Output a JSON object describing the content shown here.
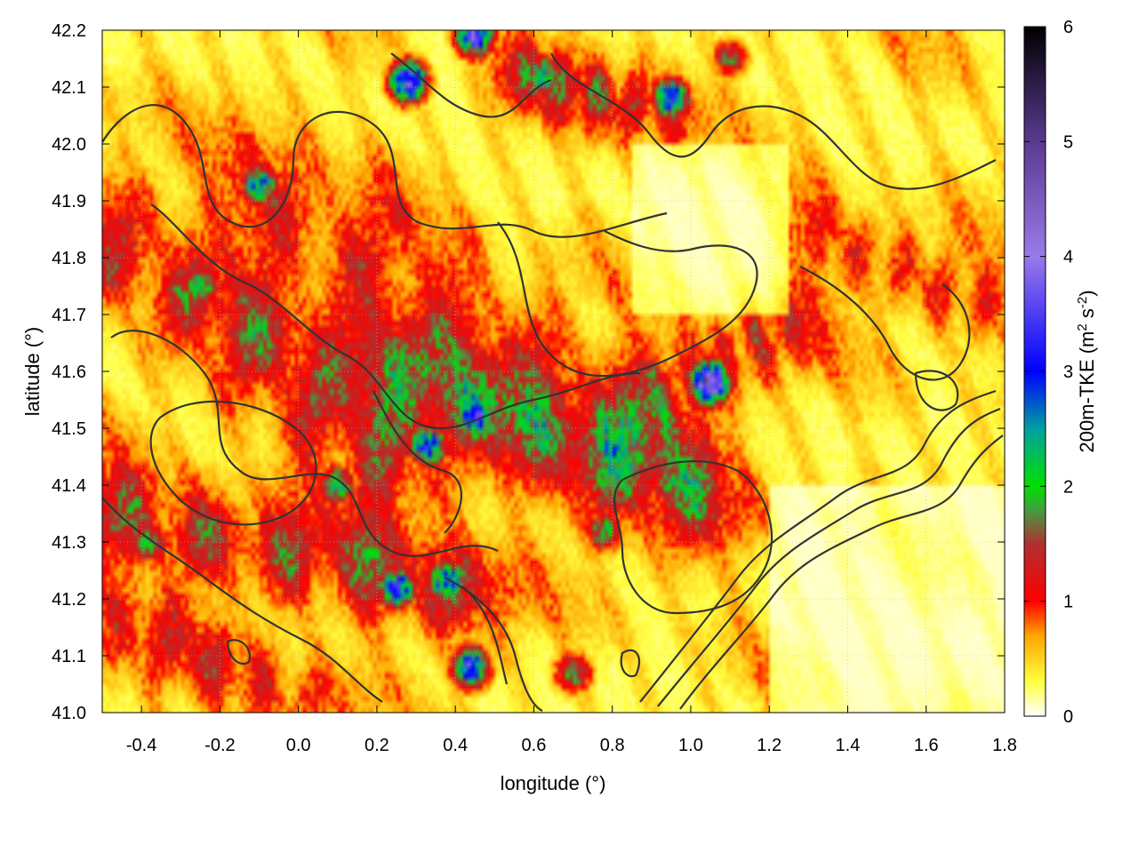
{
  "chart_data": {
    "type": "heatmap",
    "xlabel": "longitude (°)",
    "ylabel": "latitude (°)",
    "xlim": [
      -0.5,
      1.8
    ],
    "ylim": [
      41.0,
      42.2
    ],
    "x_ticks": [
      "-0.4",
      "-0.2",
      "0.0",
      "0.2",
      "0.4",
      "0.6",
      "0.8",
      "1.0",
      "1.2",
      "1.4",
      "1.6",
      "1.8"
    ],
    "x_tick_values": [
      -0.4,
      -0.2,
      0.0,
      0.2,
      0.4,
      0.6,
      0.8,
      1.0,
      1.2,
      1.4,
      1.6,
      1.8
    ],
    "y_ticks": [
      "41.0",
      "41.1",
      "41.2",
      "41.3",
      "41.4",
      "41.5",
      "41.6",
      "41.7",
      "41.8",
      "41.9",
      "42.0",
      "42.1",
      "42.2"
    ],
    "y_tick_values": [
      41.0,
      41.1,
      41.2,
      41.3,
      41.4,
      41.5,
      41.6,
      41.7,
      41.8,
      41.9,
      42.0,
      42.1,
      42.2
    ],
    "colorbar": {
      "label_main": "200m-TKE (m",
      "label_sup1": "2",
      "label_mid": " s",
      "label_sup2": "-2",
      "label_end": ")",
      "range": [
        0,
        6
      ],
      "ticks": [
        "0",
        "1",
        "2",
        "3",
        "4",
        "5",
        "6"
      ],
      "tick_values": [
        0,
        1,
        2,
        3,
        4,
        5,
        6
      ],
      "stops": [
        {
          "value": 0.0,
          "color": "#ffffff"
        },
        {
          "value": 0.3,
          "color": "#ffff40"
        },
        {
          "value": 0.7,
          "color": "#ffa500"
        },
        {
          "value": 1.0,
          "color": "#ff0000"
        },
        {
          "value": 1.5,
          "color": "#b03030"
        },
        {
          "value": 1.8,
          "color": "#40a040"
        },
        {
          "value": 2.0,
          "color": "#00e000"
        },
        {
          "value": 2.5,
          "color": "#00a0a0"
        },
        {
          "value": 3.0,
          "color": "#0000ff"
        },
        {
          "value": 4.0,
          "color": "#9a7ae8"
        },
        {
          "value": 5.0,
          "color": "#5a3a90"
        },
        {
          "value": 6.0,
          "color": "#000000"
        }
      ]
    },
    "grid": true,
    "hotspots": [
      {
        "lon": 1.05,
        "lat": 41.58,
        "value": 4.6
      },
      {
        "lon": 0.45,
        "lat": 41.52,
        "value": 3.4
      },
      {
        "lon": 0.33,
        "lat": 41.47,
        "value": 3.0
      },
      {
        "lon": 0.25,
        "lat": 41.22,
        "value": 3.2
      },
      {
        "lon": 0.38,
        "lat": 41.23,
        "value": 3.0
      },
      {
        "lon": 0.44,
        "lat": 41.08,
        "value": 3.2
      },
      {
        "lon": 0.28,
        "lat": 42.11,
        "value": 3.6
      },
      {
        "lon": 0.95,
        "lat": 42.08,
        "value": 3.0
      },
      {
        "lon": 0.62,
        "lat": 42.12,
        "value": 2.4
      },
      {
        "lon": -0.25,
        "lat": 41.75,
        "value": 2.2
      },
      {
        "lon": -0.38,
        "lat": 41.3,
        "value": 2.0
      },
      {
        "lon": 0.1,
        "lat": 41.4,
        "value": 2.2
      },
      {
        "lon": 0.95,
        "lat": 41.4,
        "value": 2.1
      },
      {
        "lon": 0.78,
        "lat": 41.32,
        "value": 2.0
      },
      {
        "lon": -0.1,
        "lat": 41.93,
        "value": 2.6
      },
      {
        "lon": 0.45,
        "lat": 42.19,
        "value": 3.4
      },
      {
        "lon": 0.7,
        "lat": 41.07,
        "value": 1.9
      },
      {
        "lon": 1.1,
        "lat": 42.15,
        "value": 1.6
      }
    ],
    "bands": [
      {
        "from": [
          -0.5,
          41.85
        ],
        "to": [
          0.3,
          41.4
        ],
        "width": 0.08,
        "value": 1.1
      },
      {
        "from": [
          -0.1,
          41.9
        ],
        "to": [
          0.9,
          41.45
        ],
        "width": 0.1,
        "value": 0.9
      },
      {
        "from": [
          0.2,
          41.6
        ],
        "to": [
          1.1,
          41.35
        ],
        "width": 0.07,
        "value": 1.2
      },
      {
        "from": [
          -0.5,
          41.35
        ],
        "to": [
          0.5,
          41.2
        ],
        "width": 0.06,
        "value": 1.3
      },
      {
        "from": [
          0.9,
          41.55
        ],
        "to": [
          1.3,
          41.7
        ],
        "width": 0.06,
        "value": 1.0
      },
      {
        "from": [
          0.55,
          42.12
        ],
        "to": [
          1.0,
          42.05
        ],
        "width": 0.05,
        "value": 1.1
      },
      {
        "from": [
          -0.5,
          41.15
        ],
        "to": [
          0.1,
          41.0
        ],
        "width": 0.06,
        "value": 0.8
      },
      {
        "from": [
          1.3,
          41.85
        ],
        "to": [
          1.8,
          41.7
        ],
        "width": 0.05,
        "value": 0.8
      }
    ]
  }
}
